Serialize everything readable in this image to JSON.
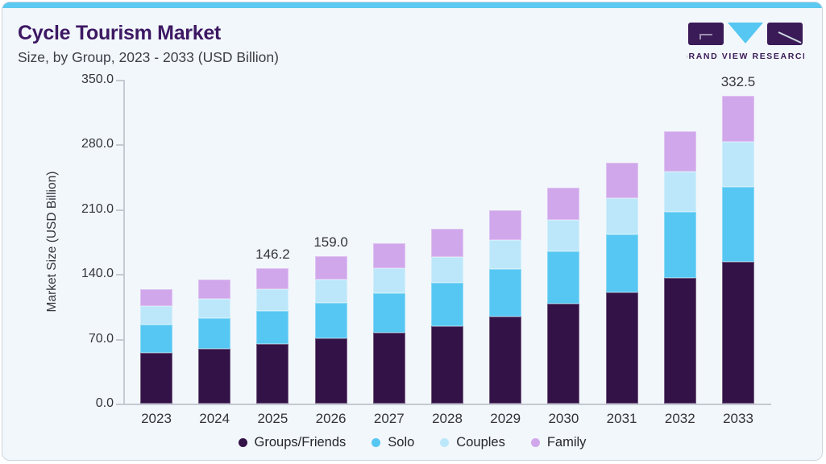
{
  "card": {
    "background": "#f2f7fb",
    "accent_color": "#5cc9f0",
    "border_color": "#ccd6e0"
  },
  "header": {
    "title": "Cycle Tourism Market",
    "subtitle": "Size, by Group, 2023 - 2033 (USD Billion)",
    "title_color": "#3d1863"
  },
  "logo": {
    "text": "GRAND VIEW RESEARCH",
    "dark_color": "#3a1b57",
    "light_color": "#56c7f2"
  },
  "chart_data": {
    "type": "bar",
    "stacked": true,
    "title": "Cycle Tourism Market Size, by Group, 2023 - 2033 (USD Billion)",
    "categories": [
      "2023",
      "2024",
      "2025",
      "2026",
      "2027",
      "2028",
      "2029",
      "2030",
      "2031",
      "2032",
      "2033"
    ],
    "series": [
      {
        "name": "Groups/Friends",
        "color": "#331247",
        "values": [
          54.6,
          59.0,
          64.4,
          70.3,
          76.6,
          84.0,
          94.4,
          107.6,
          119.8,
          135.4,
          153.5
        ]
      },
      {
        "name": "Solo",
        "color": "#56c7f2",
        "values": [
          30.3,
          33.0,
          35.8,
          38.9,
          42.9,
          46.8,
          51.1,
          56.7,
          63.3,
          71.4,
          80.6
        ]
      },
      {
        "name": "Couples",
        "color": "#bce7fa",
        "values": [
          20.1,
          21.6,
          23.7,
          25.3,
          27.2,
          27.9,
          30.9,
          34.1,
          38.6,
          44.0,
          49.1
        ]
      },
      {
        "name": "Family",
        "color": "#d0a7eb",
        "values": [
          18.6,
          20.8,
          22.3,
          24.5,
          26.3,
          30.1,
          32.6,
          34.6,
          38.3,
          43.2,
          49.3
        ]
      }
    ],
    "totals": [
      123.6,
      134.4,
      146.2,
      159.0,
      173.0,
      188.8,
      209.0,
      233.0,
      260.0,
      294.0,
      332.5
    ],
    "bar_labels": {
      "2025": "146.2",
      "2026": "159.0",
      "2033": "332.5"
    },
    "xlabel": "",
    "ylabel": "Market Size (USD Billion)",
    "ylim": [
      0,
      350
    ],
    "ytick_labels": [
      "0.0",
      "70.0",
      "140.0",
      "210.0",
      "280.0",
      "350.0"
    ],
    "ytick_values": [
      0,
      70,
      140,
      210,
      280,
      350
    ],
    "grid": false,
    "legend_position": "bottom",
    "axis_color": "#c5cad2",
    "label_color": "#35353d"
  }
}
